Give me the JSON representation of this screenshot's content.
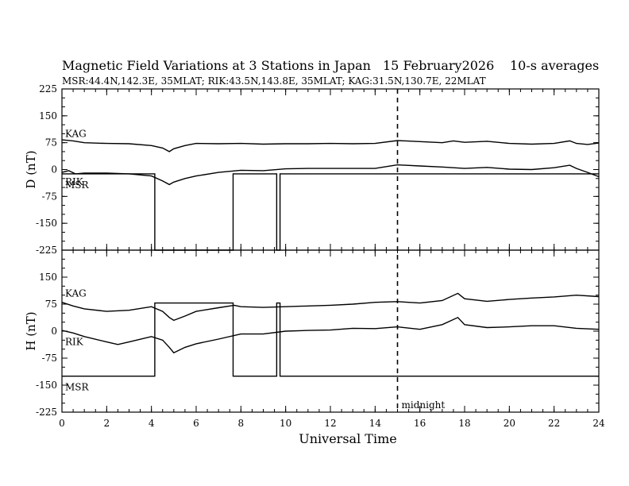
{
  "title": "Magnetic Field Variations at 3 Stations in Japan",
  "date": "15 February2026",
  "averaging": "10-s averages",
  "subtitle": "MSR:44.4N,142.3E, 35MLAT;  RIK:43.5N,143.8E, 35MLAT;  KAG:31.5N,130.7E, 22MLAT",
  "chart_data": [
    {
      "type": "line",
      "panel": "D",
      "ylabel": "D (nT)",
      "xlabel": "Universal Time",
      "xlim": [
        0,
        24
      ],
      "ylim": [
        -225,
        225
      ],
      "xticks": [
        0,
        2,
        4,
        6,
        8,
        10,
        12,
        14,
        16,
        18,
        20,
        22,
        24
      ],
      "yticks": [
        225,
        150,
        75,
        0,
        -75,
        -150,
        -225
      ],
      "series": [
        {
          "name": "KAG",
          "label": "KAG",
          "x": [
            0,
            0.5,
            1,
            2,
            3,
            4,
            4.5,
            4.8,
            5,
            5.5,
            6,
            7,
            8,
            9,
            10,
            11,
            12,
            13,
            14,
            15,
            16,
            17,
            17.5,
            18,
            19,
            20,
            21,
            22,
            22.7,
            23,
            23.5,
            24
          ],
          "y": [
            83,
            80,
            75,
            73,
            72,
            67,
            60,
            50,
            58,
            67,
            73,
            72,
            73,
            71,
            72,
            72,
            73,
            72,
            73,
            81,
            78,
            75,
            80,
            76,
            79,
            73,
            71,
            73,
            80,
            73,
            70,
            74
          ]
        },
        {
          "name": "RIK",
          "label": "RIK",
          "x": [
            0,
            0.3,
            0.6,
            1,
            2,
            3,
            4,
            4.5,
            4.8,
            5,
            5.5,
            6,
            7,
            8,
            9,
            10,
            11,
            12,
            13,
            14,
            15,
            16,
            17,
            18,
            19,
            20,
            21,
            22,
            22.7,
            23,
            23.5,
            24
          ],
          "y": [
            -8,
            -3,
            -12,
            -10,
            -10,
            -12,
            -18,
            -32,
            -42,
            -35,
            -25,
            -18,
            -8,
            -2,
            -3,
            2,
            3,
            3,
            3,
            3,
            13,
            10,
            7,
            3,
            6,
            1,
            0,
            5,
            12,
            3,
            -8,
            -20
          ]
        },
        {
          "name": "MSR",
          "label": "MSR",
          "x": [
            0,
            4.15,
            4.15,
            7.65,
            7.65,
            9.6,
            9.6,
            9.75,
            9.75,
            24
          ],
          "y": [
            -12,
            -12,
            -225,
            -225,
            -12,
            -12,
            -225,
            -225,
            -12,
            -12
          ]
        }
      ],
      "annotations": []
    },
    {
      "type": "line",
      "panel": "H",
      "ylabel": "H (nT)",
      "xlabel": "Universal Time",
      "xlim": [
        0,
        24
      ],
      "ylim": [
        -225,
        225
      ],
      "xticks": [
        0,
        2,
        4,
        6,
        8,
        10,
        12,
        14,
        16,
        18,
        20,
        22,
        24
      ],
      "yticks": [
        225,
        150,
        75,
        0,
        -75,
        -150,
        -225
      ],
      "series": [
        {
          "name": "KAG",
          "label": "KAG",
          "x": [
            0,
            0.5,
            1,
            2,
            3,
            4,
            4.5,
            4.8,
            5,
            5.5,
            6,
            7,
            7.7,
            8,
            9,
            10,
            11,
            12,
            13,
            14,
            15,
            16,
            17,
            17.7,
            18,
            19,
            20,
            21,
            22,
            23,
            24
          ],
          "y": [
            80,
            70,
            62,
            55,
            58,
            68,
            55,
            38,
            30,
            42,
            55,
            65,
            72,
            68,
            66,
            68,
            70,
            72,
            75,
            80,
            82,
            78,
            85,
            105,
            90,
            83,
            88,
            92,
            95,
            100,
            96
          ]
        },
        {
          "name": "RIK",
          "label": "RIK",
          "x": [
            0,
            0.5,
            1,
            2,
            2.5,
            3,
            4,
            4.5,
            4.8,
            5,
            5.5,
            6,
            7,
            8,
            9,
            10,
            11,
            12,
            13,
            14,
            15,
            16,
            17,
            17.7,
            18,
            19,
            20,
            21,
            22,
            23,
            24
          ],
          "y": [
            2,
            -5,
            -15,
            -30,
            -37,
            -30,
            -15,
            -25,
            -45,
            -60,
            -45,
            -35,
            -22,
            -8,
            -8,
            0,
            2,
            3,
            8,
            7,
            12,
            5,
            18,
            38,
            18,
            10,
            12,
            15,
            15,
            8,
            5
          ]
        },
        {
          "name": "MSR",
          "label": "MSR",
          "x": [
            0,
            4.15,
            4.15,
            7.65,
            7.65,
            9.6,
            9.6,
            9.75,
            9.75,
            24
          ],
          "y": [
            -125,
            -125,
            78,
            78,
            -125,
            -125,
            78,
            78,
            -125,
            -125
          ]
        }
      ],
      "annotations": [
        {
          "x": 15,
          "text": "midnight"
        }
      ]
    }
  ]
}
